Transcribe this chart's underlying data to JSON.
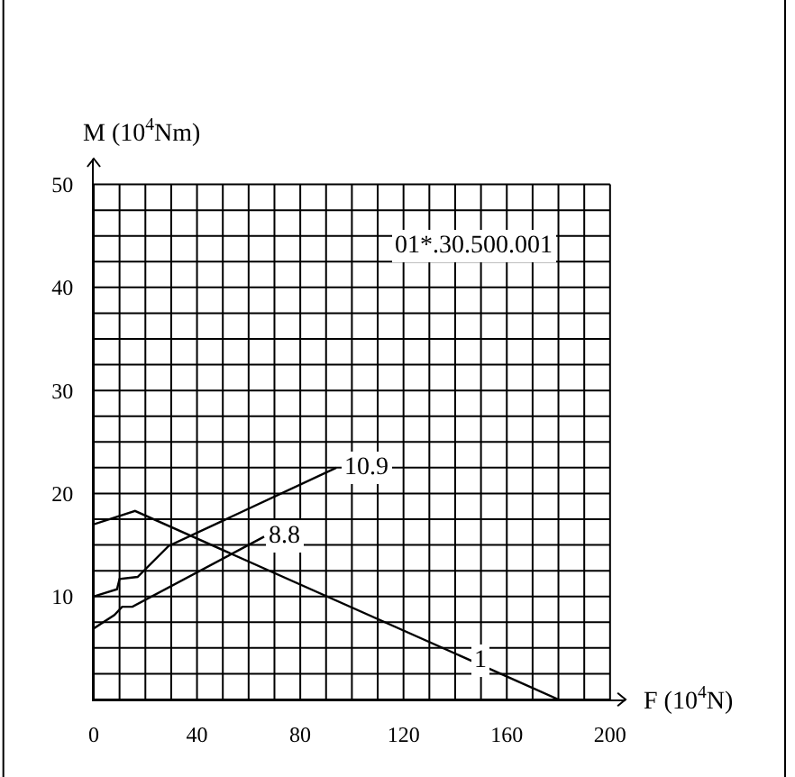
{
  "chart_data": {
    "type": "line",
    "xlabel": "F (10$^{4}$N)",
    "ylabel": "M (10$^{4}$Nm)",
    "series": [
      {
        "color": "#000000",
        "x": [
          0,
          16,
          180
        ],
        "values": [
          17.0,
          18.3,
          0
        ]
      },
      {
        "color": "#000000",
        "x": [
          0,
          9,
          10,
          17,
          29,
          94
        ],
        "values": [
          10.0,
          10.7,
          11.7,
          11.9,
          14.9,
          22.5
        ]
      },
      {
        "color": "#000000",
        "x": [
          0,
          8,
          11,
          15,
          66
        ],
        "values": [
          6.9,
          8.2,
          9.0,
          9.0,
          15.8
        ]
      }
    ],
    "annotations": [
      {
        "text": "1",
        "x": 146,
        "y": 3.8
      },
      {
        "text": "10.9",
        "x": 96,
        "y": 22.5
      },
      {
        "text": "8.8",
        "x": 66,
        "y": 15.8
      },
      "01*.30.500.001"
    ],
    "xlim": [
      0,
      206
    ],
    "ylim": [
      0,
      52.5
    ],
    "xticks": [
      0,
      {
        "value": 10,
        "label": null
      },
      {
        "value": 20,
        "label": null
      },
      {
        "value": 30,
        "label": null
      },
      40,
      {
        "value": 50,
        "label": null
      },
      {
        "value": 60,
        "label": null
      },
      {
        "value": 70,
        "label": null
      },
      80,
      {
        "value": 90,
        "label": null
      },
      {
        "value": 100,
        "label": null
      },
      {
        "value": 110,
        "label": null
      },
      120,
      {
        "value": 130,
        "label": null
      },
      {
        "value": 140,
        "label": null
      },
      {
        "value": 150,
        "label": null
      },
      160,
      {
        "value": 170,
        "label": null
      },
      {
        "value": 180,
        "label": null
      },
      {
        "value": 190,
        "label": null
      },
      200
    ],
    "yticks": [
      {
        "value": 0,
        "label": null
      },
      {
        "value": 2.5,
        "label": null
      },
      {
        "value": 5,
        "label": null
      },
      {
        "value": 7.5,
        "label": null
      },
      10,
      {
        "value": 12.5,
        "label": null
      },
      {
        "value": 15,
        "label": null
      },
      {
        "value": 17.5,
        "label": null
      },
      20,
      {
        "value": 22.5,
        "label": null
      },
      {
        "value": 25,
        "label": null
      },
      {
        "value": 27.5,
        "label": null
      },
      30,
      {
        "value": 32.5,
        "label": null
      },
      {
        "value": 35,
        "label": null
      },
      {
        "value": 37.5,
        "label": null
      },
      40,
      {
        "value": 42.5,
        "label": null
      },
      {
        "value": 45,
        "label": null
      },
      {
        "value": 47.5,
        "label": null
      },
      50
    ],
    "grid": true,
    "marker": "none",
    "line_style": "solid"
  }
}
